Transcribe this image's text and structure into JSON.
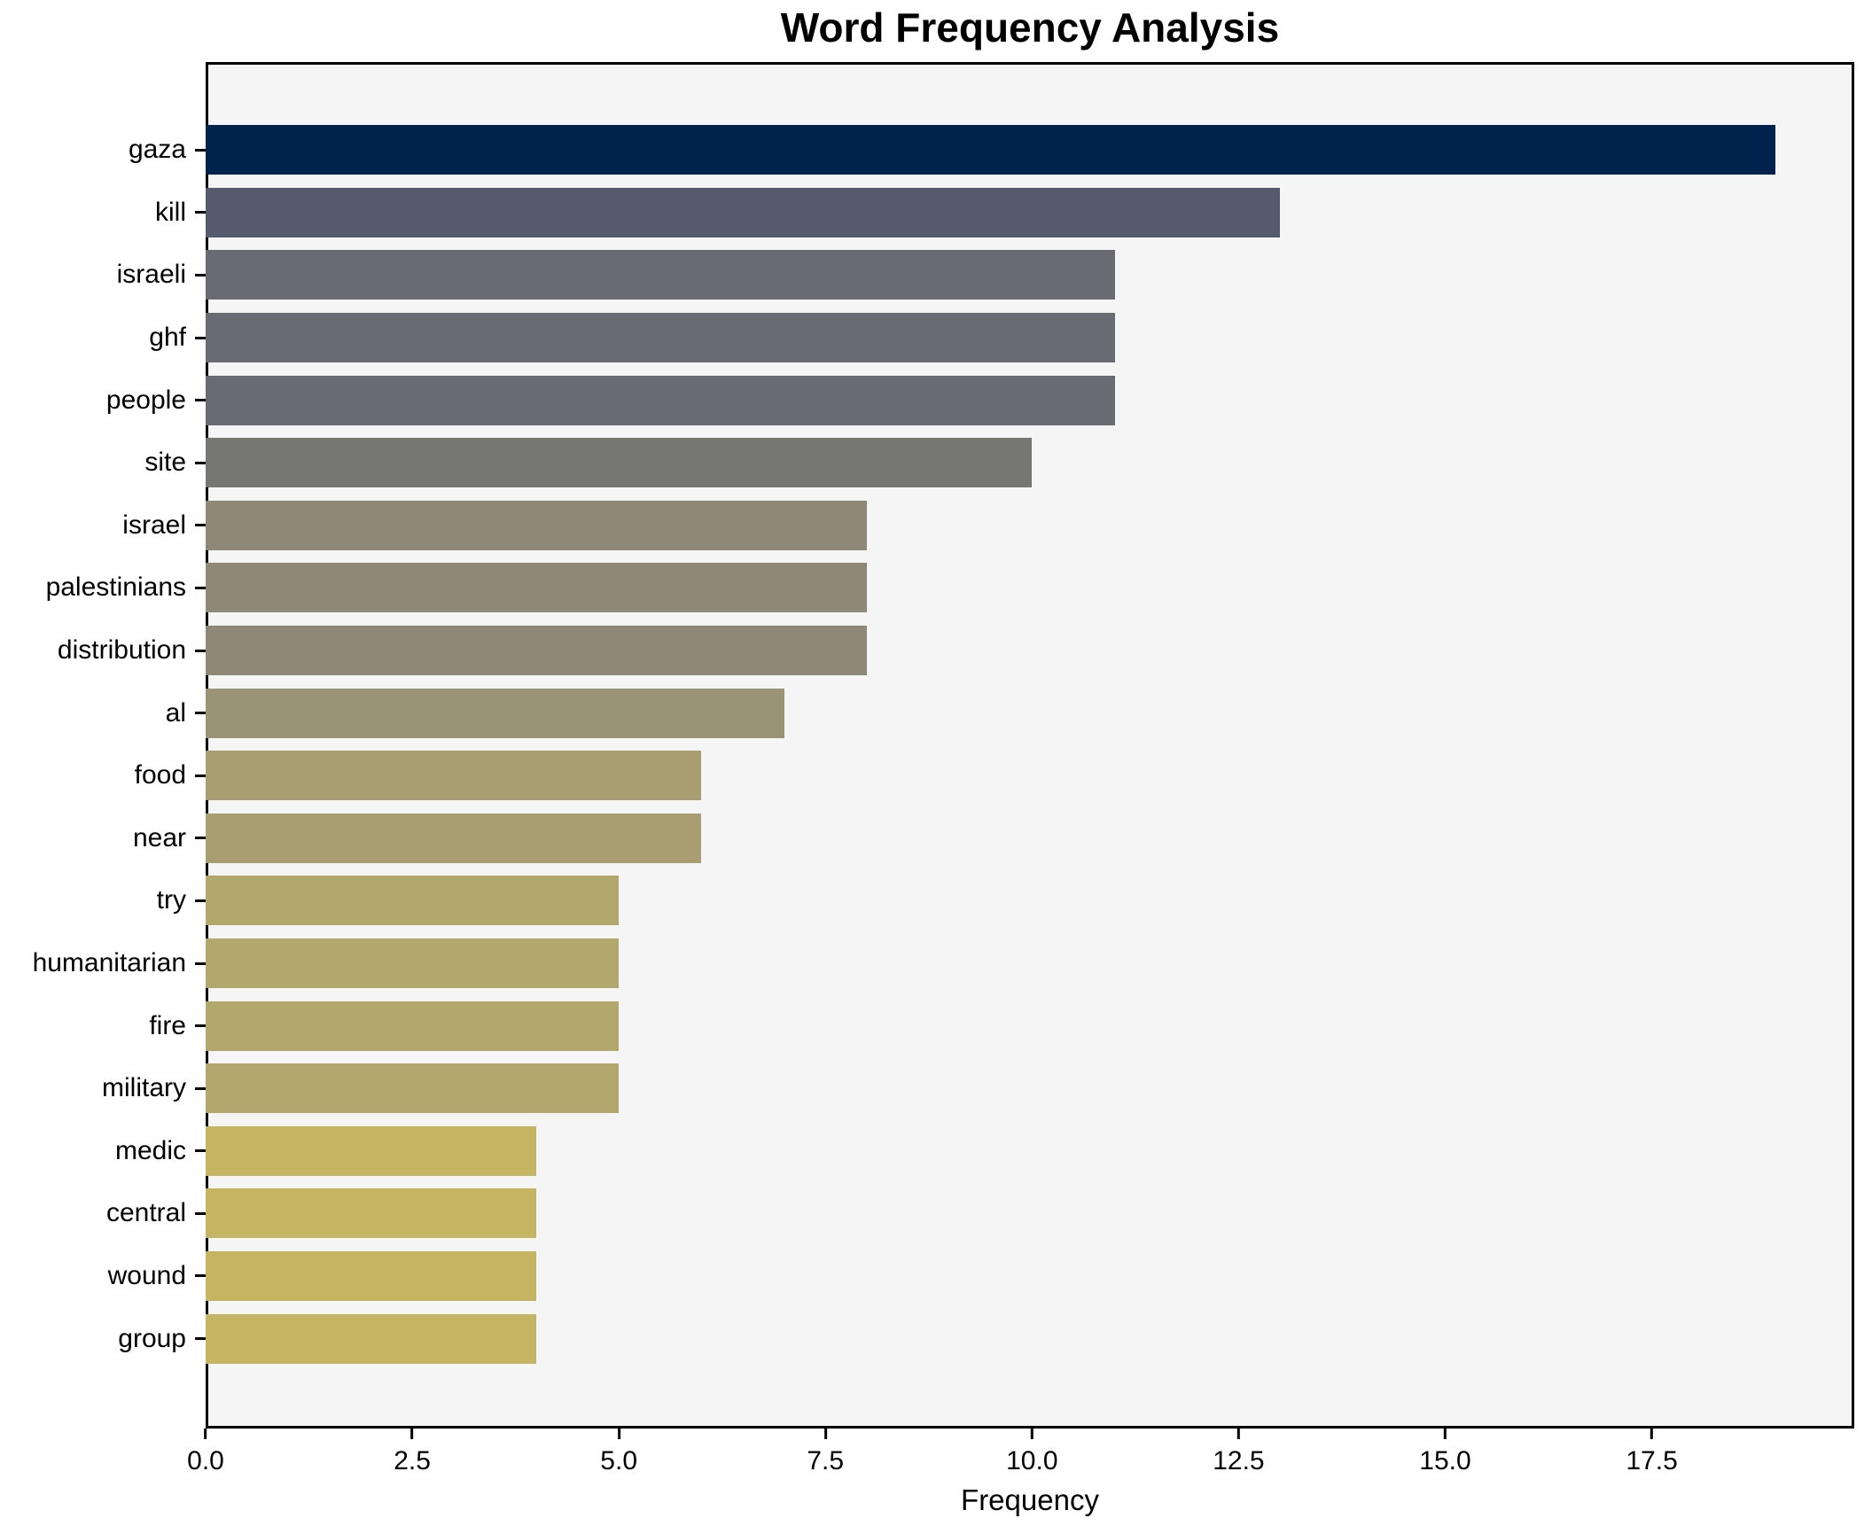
{
  "title": "Word Frequency Analysis",
  "xlabel": "Frequency",
  "chart_data": {
    "type": "bar",
    "orientation": "horizontal",
    "title": "Word Frequency Analysis",
    "xlabel": "Frequency",
    "ylabel": "",
    "categories": [
      "gaza",
      "kill",
      "israeli",
      "ghf",
      "people",
      "site",
      "israel",
      "palestinians",
      "distribution",
      "al",
      "food",
      "near",
      "try",
      "humanitarian",
      "fire",
      "military",
      "medic",
      "central",
      "wound",
      "group"
    ],
    "values": [
      19,
      13,
      11,
      11,
      11,
      10,
      8,
      8,
      8,
      7,
      6,
      6,
      5,
      5,
      5,
      5,
      4,
      4,
      4,
      4
    ],
    "bar_colors": [
      "#00234e",
      "#555b6e",
      "#6a6a72",
      "#6a6a72",
      "#6a6a72",
      "#767672",
      "#8e8977",
      "#8e8977",
      "#8e8977",
      "#9a9375",
      "#a89e71",
      "#a89e71",
      "#b2a76c",
      "#b2a76c",
      "#b2a76c",
      "#b2a76c",
      "#c5b563",
      "#c5b563",
      "#c5b563",
      "#c5b563"
    ],
    "xlim": [
      0,
      19.95
    ],
    "xticks": [
      0.0,
      2.5,
      5.0,
      7.5,
      10.0,
      12.5,
      15.0,
      17.5
    ],
    "xtick_labels": [
      "0.0",
      "2.5",
      "5.0",
      "7.5",
      "10.0",
      "12.5",
      "15.0",
      "17.5"
    ],
    "grid": false,
    "legend": null,
    "plot_bg": "#f5f5f6",
    "figure_bg": "#ffffff",
    "bar_order": "top-to-bottom descending frequency"
  }
}
